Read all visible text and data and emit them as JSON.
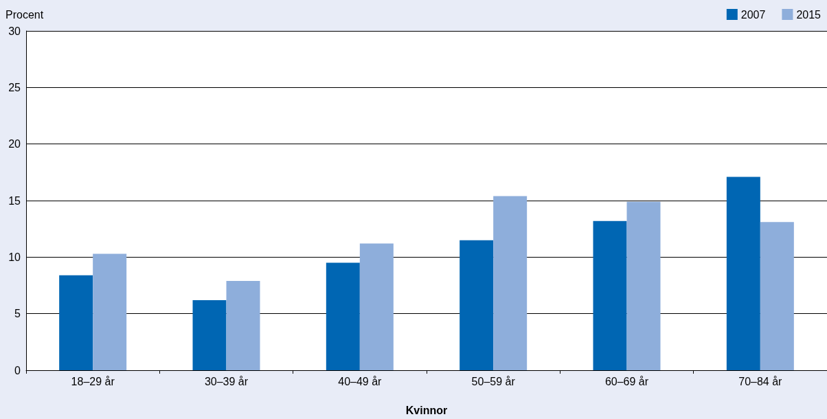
{
  "chart_data": {
    "type": "bar",
    "ylabel": "Procent",
    "xlabel": "Kvinnor",
    "categories": [
      "18–29 år",
      "30–39 år",
      "40–49 år",
      "50–59 år",
      "60–69 år",
      "70–84 år"
    ],
    "series": [
      {
        "name": "2007",
        "color": "#0066b3",
        "values": [
          8.4,
          6.2,
          9.5,
          11.5,
          13.2,
          17.1
        ]
      },
      {
        "name": "2015",
        "color": "#8eaedb",
        "values": [
          10.3,
          7.9,
          11.2,
          15.4,
          14.9,
          13.1
        ]
      }
    ],
    "ylim": [
      0,
      30
    ],
    "yticks": [
      0,
      5,
      10,
      15,
      20,
      25,
      30
    ],
    "grid": "y",
    "legend": "top right"
  }
}
